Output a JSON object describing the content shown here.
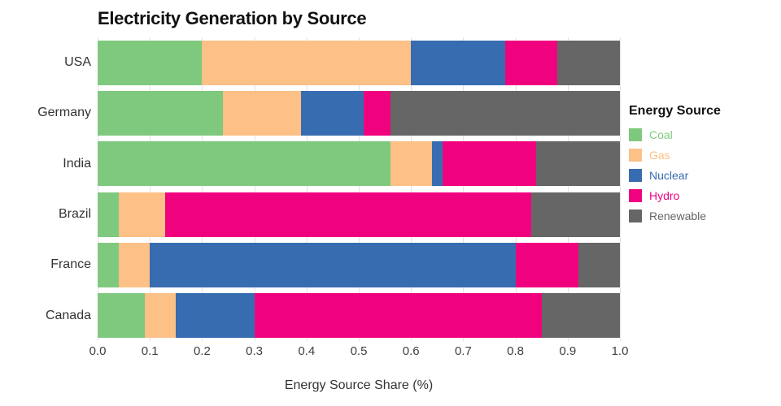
{
  "title": "Electricity Generation by Source",
  "xlabel": "Energy Source Share (%)",
  "legend": {
    "title": "Energy Source",
    "entries": [
      {
        "label": "Coal",
        "color": "#7fc97f"
      },
      {
        "label": "Gas",
        "color": "#fdc086"
      },
      {
        "label": "Nuclear",
        "color": "#386cb0"
      },
      {
        "label": "Hydro",
        "color": "#f0027f"
      },
      {
        "label": "Renewable",
        "color": "#666666"
      }
    ]
  },
  "chart_data": {
    "type": "bar",
    "orientation": "horizontal",
    "stacked": true,
    "title": "Electricity Generation by Source",
    "xlabel": "Energy Source Share (%)",
    "ylabel": "",
    "xlim": [
      0.0,
      1.0
    ],
    "x_ticks": [
      "0.0",
      "0.1",
      "0.2",
      "0.3",
      "0.4",
      "0.5",
      "0.6",
      "0.7",
      "0.8",
      "0.9",
      "1.0"
    ],
    "grid": true,
    "legend_position": "right",
    "categories": [
      "USA",
      "Germany",
      "India",
      "Brazil",
      "France",
      "Canada"
    ],
    "series": [
      {
        "name": "Coal",
        "color": "#7fc97f",
        "values": [
          0.2,
          0.24,
          0.56,
          0.04,
          0.04,
          0.09
        ]
      },
      {
        "name": "Gas",
        "color": "#fdc086",
        "values": [
          0.4,
          0.15,
          0.08,
          0.09,
          0.06,
          0.06
        ]
      },
      {
        "name": "Nuclear",
        "color": "#386cb0",
        "values": [
          0.18,
          0.12,
          0.02,
          0.0,
          0.7,
          0.15
        ]
      },
      {
        "name": "Hydro",
        "color": "#f0027f",
        "values": [
          0.1,
          0.05,
          0.18,
          0.7,
          0.12,
          0.55
        ]
      },
      {
        "name": "Renewable",
        "color": "#666666",
        "values": [
          0.12,
          0.44,
          0.16,
          0.17,
          0.08,
          0.15
        ]
      }
    ]
  }
}
